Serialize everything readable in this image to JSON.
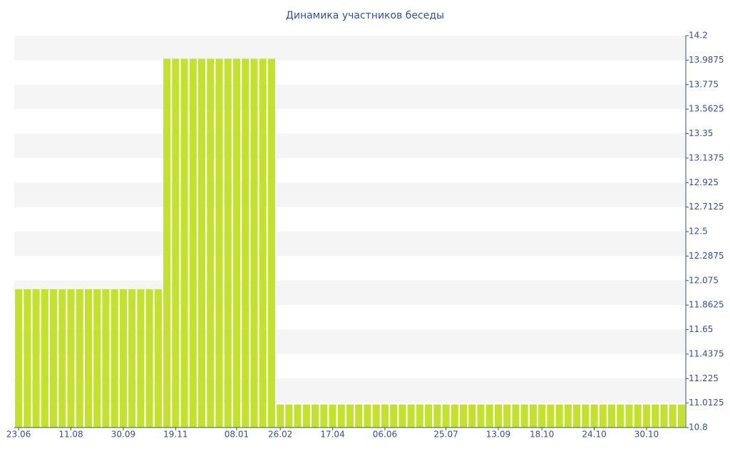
{
  "chart_data": {
    "type": "bar",
    "title": "Динамика участников беседы",
    "categories": [
      "23.06",
      null,
      null,
      null,
      null,
      null,
      "11.08",
      null,
      null,
      null,
      null,
      null,
      "30.09",
      null,
      null,
      null,
      null,
      null,
      "19.11",
      null,
      null,
      null,
      null,
      null,
      null,
      "08.01",
      null,
      null,
      null,
      null,
      "26.02",
      null,
      null,
      null,
      null,
      null,
      "17.04",
      null,
      null,
      null,
      null,
      null,
      "06.06",
      null,
      null,
      null,
      null,
      null,
      null,
      "25.07",
      null,
      null,
      null,
      null,
      null,
      "13.09",
      null,
      null,
      null,
      null,
      "18.10",
      null,
      null,
      null,
      null,
      null,
      "24.10",
      null,
      null,
      null,
      null,
      null,
      "30.10",
      null,
      null,
      null,
      null
    ],
    "values": [
      12,
      12,
      12,
      12,
      12,
      12,
      12,
      12,
      12,
      12,
      12,
      12,
      12,
      12,
      12,
      12,
      12,
      14,
      14,
      14,
      14,
      14,
      14,
      14,
      14,
      14,
      14,
      14,
      14,
      14,
      11,
      11,
      11,
      11,
      11,
      11,
      11,
      11,
      11,
      11,
      11,
      11,
      11,
      11,
      11,
      11,
      11,
      11,
      11,
      11,
      11,
      11,
      11,
      11,
      11,
      11,
      11,
      11,
      11,
      11,
      11,
      11,
      11,
      11,
      11,
      11,
      11,
      11,
      11,
      11,
      11,
      11,
      11,
      11,
      11,
      11,
      11
    ],
    "color": "#c4e12e",
    "ylim": [
      10.8,
      14.2
    ],
    "yticks": [
      10.8,
      11.0125,
      11.225,
      11.4375,
      11.65,
      11.8625,
      12.075,
      12.2875,
      12.5,
      12.7125,
      12.925,
      13.1375,
      13.35,
      13.5625,
      13.775,
      13.9875,
      14.2
    ],
    "grid": "bands"
  }
}
